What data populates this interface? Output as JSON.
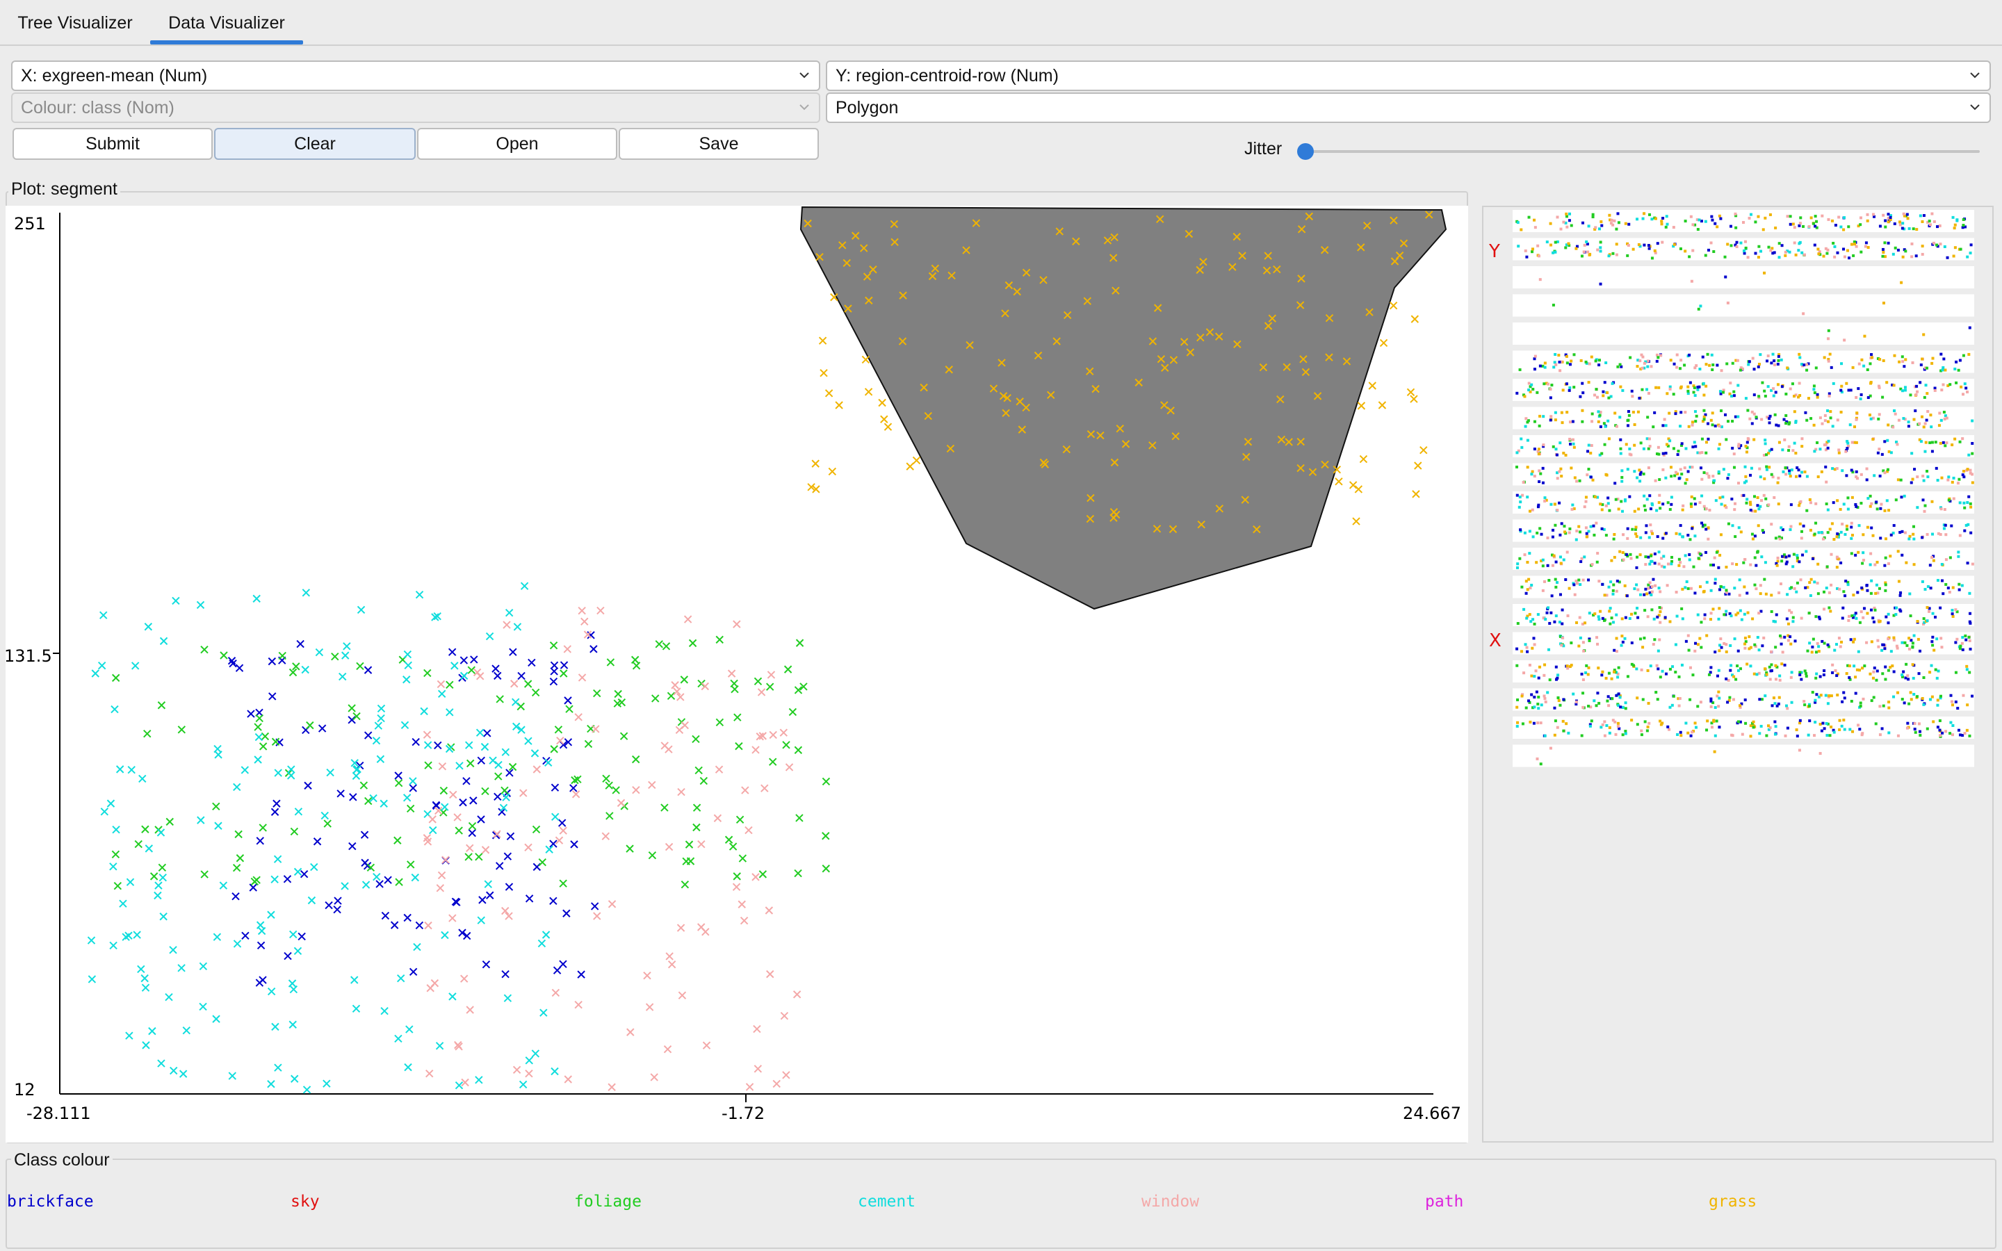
{
  "tabs": [
    {
      "label": "Tree Visualizer"
    },
    {
      "label": "Data Visualizer"
    }
  ],
  "controls": {
    "x_axis": "X: exgreen-mean (Num)",
    "y_axis": "Y: region-centroid-row (Num)",
    "colour": "Colour: class (Nom)",
    "shape": "Polygon",
    "buttons": {
      "submit": "Submit",
      "clear": "Clear",
      "open": "Open",
      "save": "Save"
    },
    "jitter_label": "Jitter",
    "jitter_value": 0
  },
  "plot": {
    "title": "Plot: segment",
    "y_max": "251",
    "y_mid": "131.5",
    "y_min": "12",
    "x_min": "-28.111",
    "x_mid": "-1.72",
    "x_max": "24.667"
  },
  "matrix": {
    "y_marker": "Y",
    "x_marker": "X"
  },
  "legend": {
    "title": "Class colour",
    "classes": [
      {
        "name": "brickface",
        "color": "#0000cc"
      },
      {
        "name": "sky",
        "color": "#e01010"
      },
      {
        "name": "foliage",
        "color": "#22cc22"
      },
      {
        "name": "cement",
        "color": "#11dddd"
      },
      {
        "name": "window",
        "color": "#f4a8a8"
      },
      {
        "name": "path",
        "color": "#dd22dd"
      },
      {
        "name": "grass",
        "color": "#f0b400"
      }
    ]
  },
  "chart_data": {
    "type": "scatter",
    "title": "Plot: segment",
    "xlabel": "exgreen-mean",
    "ylabel": "region-centroid-row",
    "xlim": [
      -28.111,
      24.667
    ],
    "ylim": [
      12,
      251
    ],
    "x_ticks": [
      "-28.111",
      "-1.72",
      "24.667"
    ],
    "y_ticks": [
      "251",
      "131.5",
      "12"
    ],
    "series": [
      {
        "name": "brickface",
        "color": "#0000cc",
        "x_range": [
          -21.5,
          -7.5
        ],
        "y_range": [
          42,
          137
        ]
      },
      {
        "name": "foliage",
        "color": "#22cc22",
        "x_range": [
          -26,
          1.5
        ],
        "y_range": [
          68,
          136
        ]
      },
      {
        "name": "cement",
        "color": "#11dddd",
        "x_range": [
          -27,
          -9
        ],
        "y_range": [
          13,
          150
        ]
      },
      {
        "name": "window",
        "color": "#f4a8a8",
        "x_range": [
          -14,
          0.5
        ],
        "y_range": [
          12,
          145
        ]
      },
      {
        "name": "grass",
        "color": "#f0b400",
        "x_range": [
          0.5,
          24.5
        ],
        "y_range": [
          165,
          251
        ]
      }
    ],
    "selection": "polygon"
  }
}
